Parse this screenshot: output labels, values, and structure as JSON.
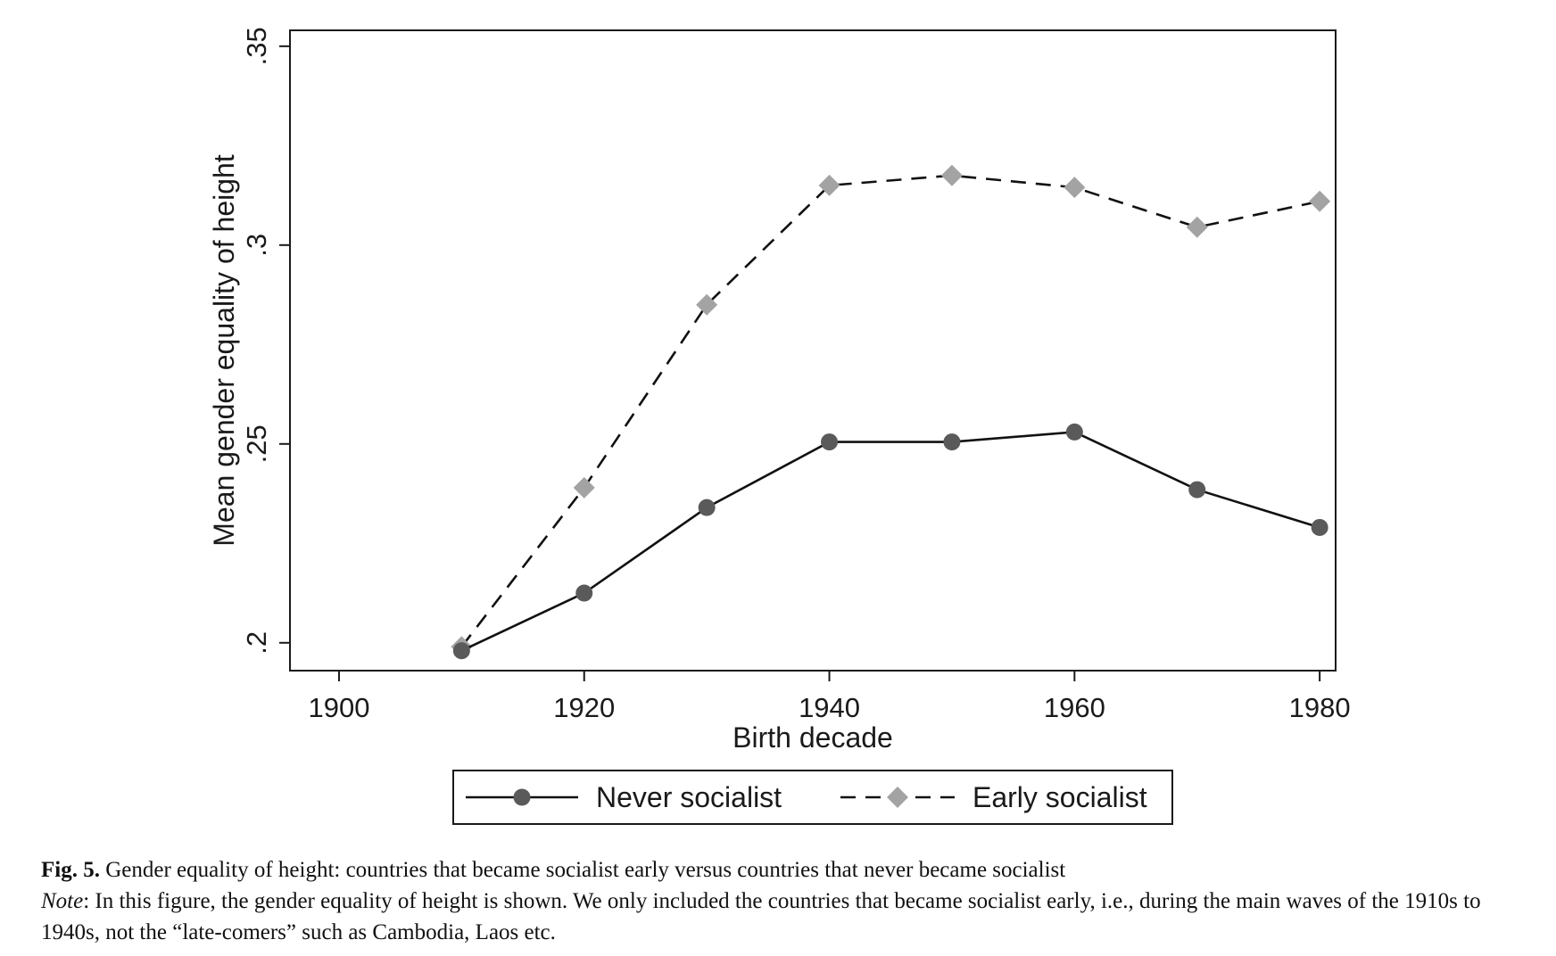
{
  "chart_data": {
    "type": "line",
    "title": "",
    "xlabel": "Birth decade",
    "ylabel": "Mean gender equality of height",
    "x": [
      1910,
      1920,
      1930,
      1940,
      1950,
      1960,
      1970,
      1980
    ],
    "xlim": [
      1896,
      1981.3
    ],
    "ylim": [
      0.193,
      0.354
    ],
    "xticks": [
      1900,
      1920,
      1940,
      1960,
      1980
    ],
    "xtick_labels": [
      "1900",
      "1920",
      "1940",
      "1960",
      "1980"
    ],
    "yticks": [
      0.2,
      0.25,
      0.3,
      0.35
    ],
    "ytick_labels": [
      ".2",
      ".25",
      ".3",
      ".35"
    ],
    "grid": false,
    "legend_position": "bottom",
    "series": [
      {
        "name": "Never socialist",
        "values": [
          0.198,
          0.2125,
          0.234,
          0.2505,
          0.2505,
          0.253,
          0.2385,
          0.229
        ],
        "color": "#5a5a5a",
        "line": "solid",
        "marker": "circle"
      },
      {
        "name": "Early socialist",
        "values": [
          0.199,
          0.239,
          0.285,
          0.315,
          0.3175,
          0.3145,
          0.3045,
          0.311
        ],
        "color": "#a3a3a3",
        "line": "dashed",
        "marker": "diamond"
      }
    ]
  },
  "caption": {
    "fig_label": "Fig. 5.",
    "fig_text": " Gender equality of height: countries that became socialist early versus countries that never became socialist",
    "note_label": "Note",
    "note_text": ": In this figure, the gender equality of height is shown. We only included the countries that became socialist early, i.e., during the main waves of the 1910s to 1940s, not the “late-comers” such as Cambodia, Laos etc."
  }
}
